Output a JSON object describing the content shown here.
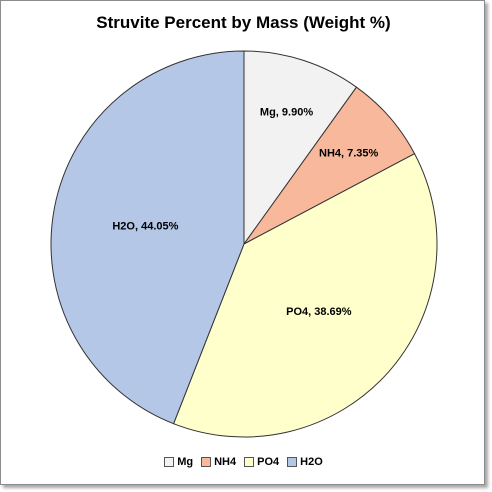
{
  "chart_data": {
    "type": "pie",
    "title": "Struvite Percent by Mass (Weight %)",
    "unit": "%",
    "legend_position": "bottom",
    "start_angle_deg": 0,
    "direction": "clockwise",
    "slices": [
      {
        "name": "Mg",
        "value": 9.9,
        "label": "Mg, 9.90%",
        "color": "#f2f2f2"
      },
      {
        "name": "NH4",
        "value": 7.35,
        "label": "NH4, 7.35%",
        "color": "#f8b89b"
      },
      {
        "name": "PO4",
        "value": 38.69,
        "label": "PO4, 38.69%",
        "color": "#ffffcc"
      },
      {
        "name": "H2O",
        "value": 44.05,
        "label": "H2O, 44.05%",
        "color": "#b4c7e7"
      }
    ]
  }
}
